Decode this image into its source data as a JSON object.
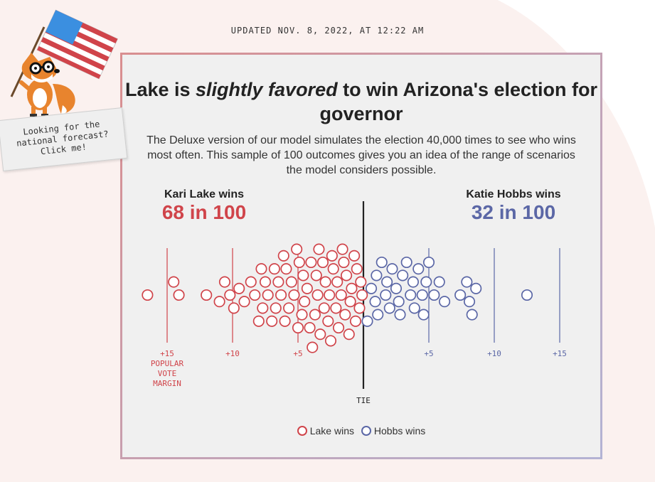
{
  "updated": "UPDATED NOV. 8, 2022, AT 12:22 AM",
  "mascot": {
    "note_lines": [
      "Looking for the",
      "national forecast?",
      "Click me!"
    ]
  },
  "colors": {
    "lake": "#d0444a",
    "hobbs": "#5b67a6",
    "text": "#222222"
  },
  "headline": {
    "before": "Lake is ",
    "emphasis": "slightly favored",
    "after": " to win Arizona's election for governor"
  },
  "subtitle": "The Deluxe version of our model simulates the election 40,000 times to see who wins most often. This sample of 100 outcomes gives you an idea of the range of scenarios the model considers possible.",
  "left_candidate": {
    "label": "Kari Lake wins",
    "value": "68 in 100"
  },
  "right_candidate": {
    "label": "Katie Hobbs wins",
    "value": "32 in 100"
  },
  "legend": {
    "lake": "Lake wins",
    "hobbs": "Hobbs wins"
  },
  "chart_data": {
    "type": "scatter",
    "subtype": "beeswarm",
    "x_label": "POPULAR VOTE MARGIN",
    "center_label": "TIE",
    "xlim": [
      -15,
      15
    ],
    "ticks": [
      {
        "value": -15,
        "label": "+15",
        "side": "lake",
        "extra": [
          "POPULAR",
          "VOTE",
          "MARGIN"
        ]
      },
      {
        "value": -10,
        "label": "+10",
        "side": "lake"
      },
      {
        "value": -5,
        "label": "+5",
        "side": "lake"
      },
      {
        "value": 5,
        "label": "+5",
        "side": "hobbs"
      },
      {
        "value": 10,
        "label": "+10",
        "side": "hobbs"
      },
      {
        "value": 15,
        "label": "+15",
        "side": "hobbs"
      }
    ],
    "series": [
      {
        "name": "Lake wins",
        "count": 68,
        "margins": [
          -16.5,
          -14.5,
          -14.1,
          -12.0,
          -11.0,
          -10.6,
          -10.2,
          -9.9,
          -9.5,
          -9.1,
          -8.6,
          -8.3,
          -8.0,
          -7.8,
          -7.5,
          -7.3,
          -7.0,
          -6.8,
          -6.5,
          -6.3,
          -6.1,
          -5.9,
          -5.7,
          -5.5,
          -5.3,
          -5.1,
          -4.9,
          -4.7,
          -4.5,
          -4.3,
          -4.1,
          -3.9,
          -3.7,
          -3.5,
          -3.3,
          -3.1,
          -2.9,
          -2.7,
          -2.5,
          -2.3,
          -2.1,
          -1.9,
          -1.7,
          -1.5,
          -1.3,
          -1.1,
          -0.9,
          -0.7,
          -0.5,
          -0.3,
          -0.2,
          -0.1,
          -4.0,
          -3.0,
          -2.0,
          -1.0,
          -6.0,
          -5.0,
          -4.6,
          -3.6,
          -2.6,
          -1.6,
          -0.6,
          -7.7,
          -6.7,
          -3.4,
          -2.4,
          -1.4
        ]
      },
      {
        "name": "Hobbs wins",
        "count": 32,
        "margins": [
          0.3,
          0.6,
          0.9,
          1.1,
          1.4,
          1.7,
          2.0,
          2.2,
          2.5,
          2.7,
          3.0,
          3.3,
          3.6,
          3.9,
          4.2,
          4.5,
          4.8,
          5.0,
          5.4,
          5.8,
          6.2,
          1.0,
          1.8,
          2.8,
          3.8,
          4.6,
          7.4,
          7.9,
          8.1,
          8.3,
          8.6,
          12.5
        ]
      }
    ]
  }
}
